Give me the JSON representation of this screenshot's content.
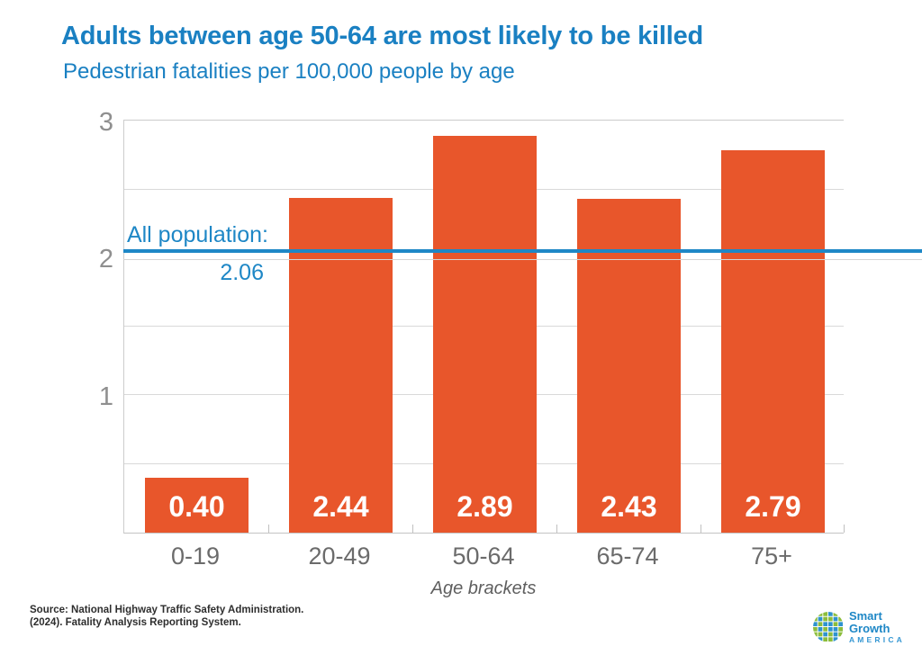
{
  "header": {
    "title": "Adults between age 50-64 are most likely to be killed",
    "subtitle": "Pedestrian fatalities per 100,000 people by age"
  },
  "chart_data": {
    "type": "bar",
    "title": "Adults between age 50-64 are most likely to be killed",
    "subtitle": "Pedestrian fatalities per 100,000 people by age",
    "categories": [
      "0-19",
      "20-49",
      "50-64",
      "65-74",
      "75+"
    ],
    "values": [
      0.4,
      2.44,
      2.89,
      2.43,
      2.79
    ],
    "value_labels": [
      "0.40",
      "2.44",
      "2.89",
      "2.43",
      "2.79"
    ],
    "xlabel": "Age brackets",
    "ylabel": "",
    "ylim": [
      0,
      3
    ],
    "yticks": [
      1,
      2,
      3
    ],
    "grid_interval": 0.5,
    "grid": true,
    "legend": false,
    "reference_line": {
      "value": 2.06,
      "label": "All population:",
      "value_label": "2.06"
    }
  },
  "colors": {
    "bar": "#E8562B",
    "accent_blue": "#1A80C2",
    "reference_line": "#1E87C6",
    "grid": "#D9D9D9",
    "bar_value_text": "#FFFFFF",
    "x_tick_text": "#6B6B6B",
    "y_tick_text": "#8F8F8F",
    "logo_green": "#8CBD3C",
    "logo_blue": "#2E93CE"
  },
  "footer": {
    "source_line1": "Source: National Highway Traffic Safety Administration.",
    "source_line2": "(2024). Fatality Analysis Reporting System.",
    "logo_name": "Smart Growth",
    "logo_sub": "AMERICA"
  }
}
